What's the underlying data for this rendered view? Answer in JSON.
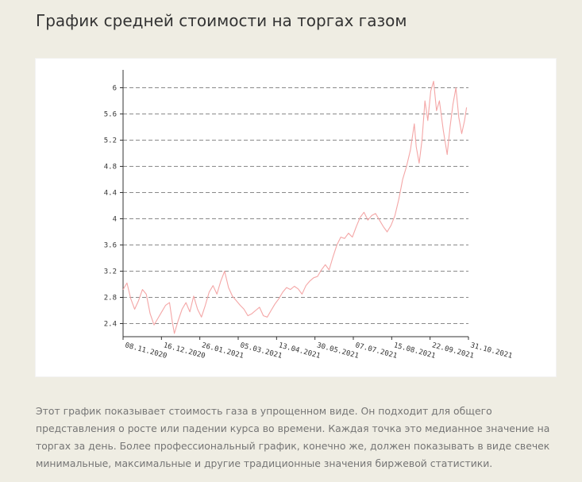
{
  "page": {
    "title": "График средней стоимости на торгах газом",
    "description": "Этот график показывает стоимость газа в упрощенном виде. Он подходит для общего представления о росте или падении курса во времени. Каждая точка  это медианное значение на торгах за день. Более профессиональный график, конечно же, должен показывать в виде свечек минимальные, максимальные и другие традиционные значения биржевой статистики."
  },
  "chart_data": {
    "type": "line",
    "title": "",
    "xlabel": "",
    "ylabel": "",
    "grid": "horizontal dashed",
    "line_color": "#f4a6a6",
    "x_ticks": [
      "08.11.2020",
      "16.12.2020",
      "26.01.2021",
      "05.03.2021",
      "13.04.2021",
      "30.05.2021",
      "07.07.2021",
      "15.08.2021",
      "22.09.2021",
      "31.10.2021"
    ],
    "x_range": [
      "2020-11-08",
      "2021-10-31"
    ],
    "y_ticks": [
      2.4,
      2.8,
      3.2,
      3.6,
      4,
      4.4,
      4.8,
      5.2,
      5.6,
      6
    ],
    "ylim": [
      2.2,
      6.2
    ],
    "series": [
      {
        "points": [
          [
            "2020-11-08",
            2.92
          ],
          [
            "2020-11-12",
            3.02
          ],
          [
            "2020-11-16",
            2.78
          ],
          [
            "2020-11-20",
            2.62
          ],
          [
            "2020-11-24",
            2.75
          ],
          [
            "2020-11-28",
            2.92
          ],
          [
            "2020-12-02",
            2.85
          ],
          [
            "2020-12-06",
            2.55
          ],
          [
            "2020-12-10",
            2.38
          ],
          [
            "2020-12-14",
            2.48
          ],
          [
            "2020-12-18",
            2.58
          ],
          [
            "2020-12-22",
            2.68
          ],
          [
            "2020-12-26",
            2.72
          ],
          [
            "2020-12-29",
            2.42
          ],
          [
            "2020-12-31",
            2.25
          ],
          [
            "2021-01-04",
            2.45
          ],
          [
            "2021-01-08",
            2.62
          ],
          [
            "2021-01-12",
            2.72
          ],
          [
            "2021-01-16",
            2.58
          ],
          [
            "2021-01-20",
            2.82
          ],
          [
            "2021-01-24",
            2.62
          ],
          [
            "2021-01-28",
            2.5
          ],
          [
            "2021-02-01",
            2.68
          ],
          [
            "2021-02-05",
            2.88
          ],
          [
            "2021-02-09",
            2.98
          ],
          [
            "2021-02-13",
            2.85
          ],
          [
            "2021-02-17",
            3.05
          ],
          [
            "2021-02-21",
            3.2
          ],
          [
            "2021-02-25",
            2.95
          ],
          [
            "2021-03-01",
            2.82
          ],
          [
            "2021-03-05",
            2.75
          ],
          [
            "2021-03-09",
            2.68
          ],
          [
            "2021-03-13",
            2.62
          ],
          [
            "2021-03-17",
            2.52
          ],
          [
            "2021-03-21",
            2.55
          ],
          [
            "2021-03-25",
            2.6
          ],
          [
            "2021-03-29",
            2.65
          ],
          [
            "2021-04-02",
            2.52
          ],
          [
            "2021-04-06",
            2.5
          ],
          [
            "2021-04-10",
            2.6
          ],
          [
            "2021-04-14",
            2.7
          ],
          [
            "2021-04-18",
            2.78
          ],
          [
            "2021-04-22",
            2.88
          ],
          [
            "2021-04-26",
            2.95
          ],
          [
            "2021-04-30",
            2.92
          ],
          [
            "2021-05-04",
            2.97
          ],
          [
            "2021-05-08",
            2.93
          ],
          [
            "2021-05-12",
            2.85
          ],
          [
            "2021-05-16",
            2.98
          ],
          [
            "2021-05-20",
            3.05
          ],
          [
            "2021-05-24",
            3.1
          ],
          [
            "2021-05-28",
            3.12
          ],
          [
            "2021-06-01",
            3.22
          ],
          [
            "2021-06-05",
            3.3
          ],
          [
            "2021-06-09",
            3.22
          ],
          [
            "2021-06-13",
            3.42
          ],
          [
            "2021-06-17",
            3.6
          ],
          [
            "2021-06-21",
            3.72
          ],
          [
            "2021-06-25",
            3.7
          ],
          [
            "2021-06-29",
            3.78
          ],
          [
            "2021-07-03",
            3.72
          ],
          [
            "2021-07-07",
            3.88
          ],
          [
            "2021-07-11",
            4.02
          ],
          [
            "2021-07-15",
            4.1
          ],
          [
            "2021-07-19",
            3.98
          ],
          [
            "2021-07-23",
            4.05
          ],
          [
            "2021-07-27",
            4.08
          ],
          [
            "2021-07-31",
            3.98
          ],
          [
            "2021-08-04",
            3.88
          ],
          [
            "2021-08-08",
            3.8
          ],
          [
            "2021-08-12",
            3.9
          ],
          [
            "2021-08-16",
            4.05
          ],
          [
            "2021-08-20",
            4.3
          ],
          [
            "2021-08-24",
            4.6
          ],
          [
            "2021-08-28",
            4.8
          ],
          [
            "2021-09-01",
            5.05
          ],
          [
            "2021-09-05",
            5.45
          ],
          [
            "2021-09-07",
            5.1
          ],
          [
            "2021-09-10",
            4.85
          ],
          [
            "2021-09-13",
            5.2
          ],
          [
            "2021-09-16",
            5.8
          ],
          [
            "2021-09-19",
            5.5
          ],
          [
            "2021-09-22",
            5.95
          ],
          [
            "2021-09-25",
            6.1
          ],
          [
            "2021-09-28",
            5.65
          ],
          [
            "2021-10-01",
            5.8
          ],
          [
            "2021-10-05",
            5.35
          ],
          [
            "2021-10-09",
            4.98
          ],
          [
            "2021-10-12",
            5.4
          ],
          [
            "2021-10-15",
            5.75
          ],
          [
            "2021-10-18",
            6.0
          ],
          [
            "2021-10-21",
            5.55
          ],
          [
            "2021-10-24",
            5.3
          ],
          [
            "2021-10-27",
            5.5
          ],
          [
            "2021-10-29",
            5.7
          ]
        ]
      }
    ]
  }
}
